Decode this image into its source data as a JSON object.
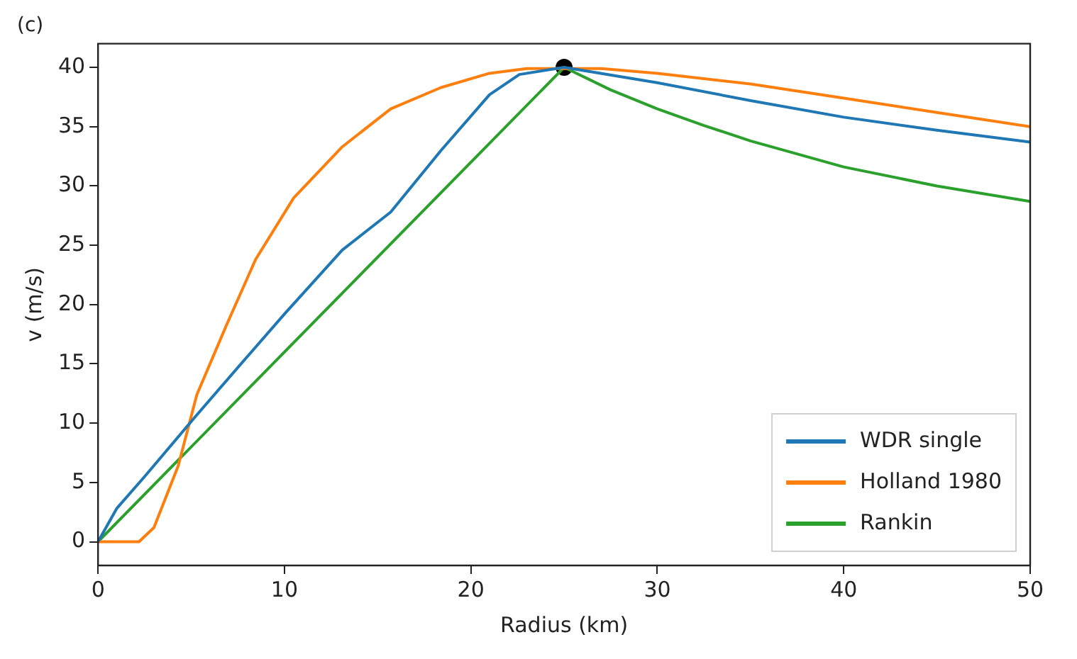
{
  "chart_data": {
    "type": "line",
    "title": "(c)",
    "xlabel": "Radius (km)",
    "ylabel": "v (m/s)",
    "xlim": [
      0,
      50
    ],
    "ylim": [
      -2,
      42
    ],
    "xticks": [
      0,
      10,
      20,
      30,
      40,
      50
    ],
    "yticks": [
      0,
      5,
      10,
      15,
      20,
      25,
      30,
      35,
      40
    ],
    "grid": false,
    "legend": "bottom right",
    "marker": "none",
    "line_style": "solid",
    "series": [
      {
        "name": "WDR single",
        "color": "#1f77b4",
        "x": [
          0,
          1,
          2.5,
          5.3,
          8,
          10,
          13.1,
          15.7,
          18.4,
          21,
          22.6,
          25,
          30,
          35,
          40,
          45,
          50
        ],
        "values": [
          0,
          2.8,
          5.5,
          10.7,
          15.6,
          19.2,
          24.6,
          27.8,
          33,
          37.7,
          39.4,
          40,
          38.7,
          37.2,
          35.8,
          34.7,
          33.7
        ]
      },
      {
        "name": "Holland 1980",
        "color": "#ff7f0e",
        "x": [
          0,
          2.2,
          3,
          4.3,
          5.3,
          6.9,
          8.45,
          10.5,
          13.1,
          15.7,
          18.4,
          21,
          23,
          27,
          30,
          35,
          40,
          45,
          50
        ],
        "values": [
          0,
          0,
          1.2,
          6.4,
          12.4,
          18.3,
          23.8,
          29,
          33.3,
          36.5,
          38.3,
          39.5,
          39.9,
          39.9,
          39.5,
          38.6,
          37.4,
          36.2,
          35
        ]
      },
      {
        "name": "Rankin",
        "color": "#2ca02c",
        "x": [
          0,
          25,
          27.5,
          30,
          32.5,
          35,
          40,
          45,
          50
        ],
        "values": [
          0,
          40,
          38.1,
          36.5,
          35.1,
          33.8,
          31.6,
          30,
          28.7
        ]
      },
      {
        "type": "scatter",
        "color": "#000000",
        "marker": "circle",
        "x": [
          25
        ],
        "values": [
          40
        ]
      }
    ]
  }
}
